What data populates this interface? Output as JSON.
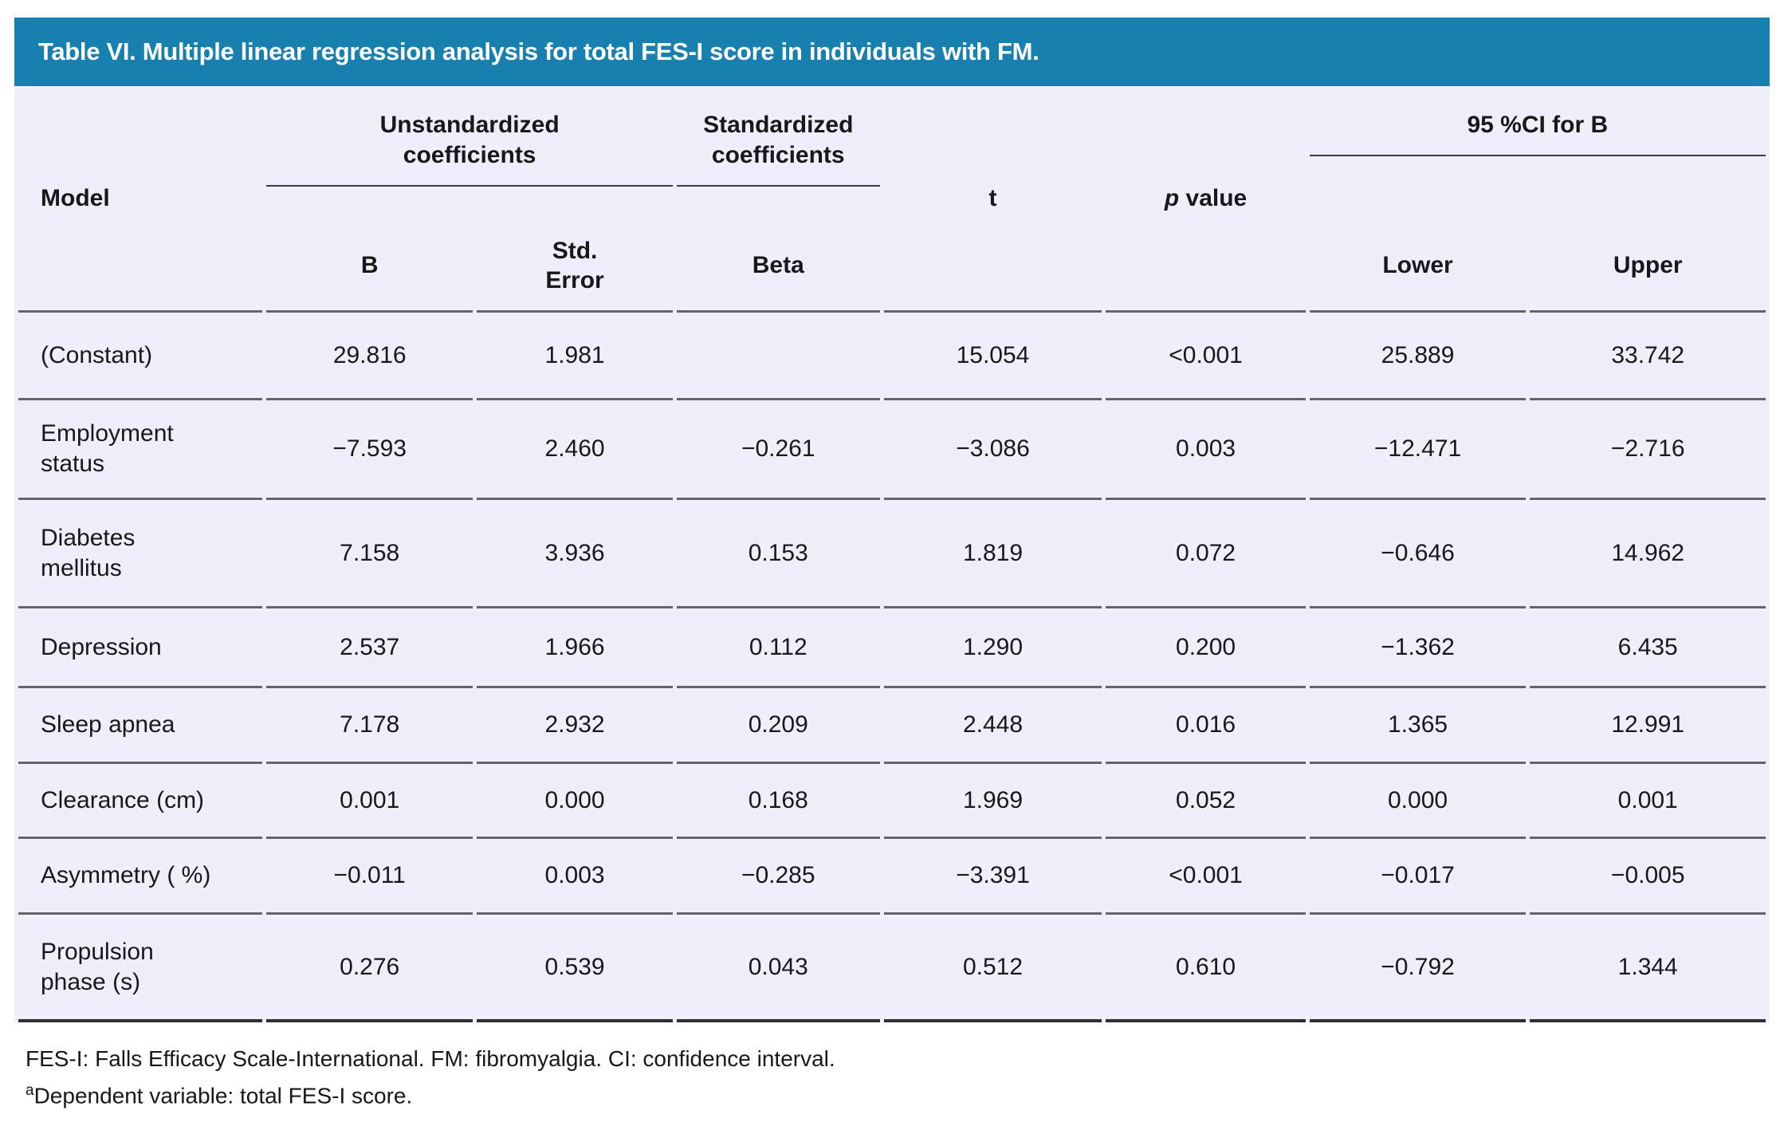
{
  "title": "Table VI. Multiple linear regression analysis for total FES-I score in individuals with FM.",
  "colors": {
    "header_bar": "#1780af",
    "table_background": "#edf0f8",
    "row_border": "#63656c",
    "bottom_border": "#2e3033"
  },
  "header": {
    "model": "Model",
    "group_unstandardized": "Unstandardized\ncoefficients",
    "group_standardized": "Standardized\ncoefficients",
    "t": "t",
    "p_italic": "p",
    "p_rest": " value",
    "group_ci": "95 %CI for B",
    "b": "B",
    "std_error": "Std.\nError",
    "beta": "Beta",
    "lower": "Lower",
    "upper": "Upper"
  },
  "rows": [
    {
      "model": "(Constant)",
      "b": "29.816",
      "se": "1.981",
      "beta": "",
      "t": "15.054",
      "p": "<0.001",
      "lower": "25.889",
      "upper": "33.742"
    },
    {
      "model": "Employment\nstatus",
      "b": "−7.593",
      "se": "2.460",
      "beta": "−0.261",
      "t": "−3.086",
      "p": "0.003",
      "lower": "−12.471",
      "upper": "−2.716"
    },
    {
      "model": "Diabetes\nmellitus",
      "b": "7.158",
      "se": "3.936",
      "beta": "0.153",
      "t": "1.819",
      "p": "0.072",
      "lower": "−0.646",
      "upper": "14.962"
    },
    {
      "model": "Depression",
      "b": "2.537",
      "se": "1.966",
      "beta": "0.112",
      "t": "1.290",
      "p": "0.200",
      "lower": "−1.362",
      "upper": "6.435"
    },
    {
      "model": "Sleep apnea",
      "b": "7.178",
      "se": "2.932",
      "beta": "0.209",
      "t": "2.448",
      "p": "0.016",
      "lower": "1.365",
      "upper": "12.991"
    },
    {
      "model": "Clearance (cm)",
      "b": "0.001",
      "se": "0.000",
      "beta": "0.168",
      "t": "1.969",
      "p": "0.052",
      "lower": "0.000",
      "upper": "0.001"
    },
    {
      "model": "Asymmetry ( %)",
      "b": "−0.011",
      "se": "0.003",
      "beta": "−0.285",
      "t": "−3.391",
      "p": "<0.001",
      "lower": "−0.017",
      "upper": "−0.005"
    },
    {
      "model": "Propulsion\nphase (s)",
      "b": "0.276",
      "se": "0.539",
      "beta": "0.043",
      "t": "0.512",
      "p": "0.610",
      "lower": "−0.792",
      "upper": "1.344"
    }
  ],
  "footnotes": {
    "abbreviations": "FES-I: Falls Efficacy Scale-International. FM: fibromyalgia. CI: confidence interval.",
    "dependent_sup": "a",
    "dependent_text": "Dependent variable: total FES-I score."
  }
}
